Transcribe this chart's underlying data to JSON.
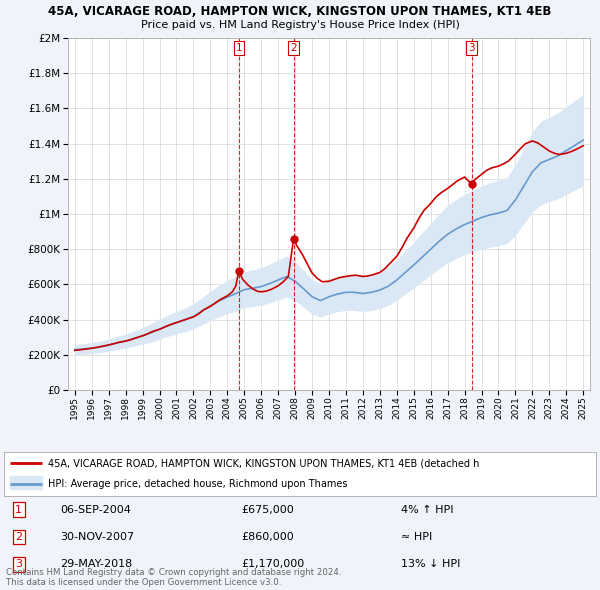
{
  "title1": "45A, VICARAGE ROAD, HAMPTON WICK, KINGSTON UPON THAMES, KT1 4EB",
  "title2": "Price paid vs. HM Land Registry's House Price Index (HPI)",
  "background_color": "#f0f4fa",
  "plot_bg_color": "#ffffff",
  "ytick_values": [
    0,
    200000,
    400000,
    600000,
    800000,
    1000000,
    1200000,
    1400000,
    1600000,
    1800000,
    2000000
  ],
  "xlim_start": 1994.6,
  "xlim_end": 2025.4,
  "ylim": [
    0,
    2000000
  ],
  "sale_dates": [
    2004.68,
    2007.91,
    2018.41
  ],
  "sale_prices": [
    675000,
    860000,
    1170000
  ],
  "sale_labels": [
    "1",
    "2",
    "3"
  ],
  "red_line_color": "#cc0000",
  "blue_line_color": "#6699cc",
  "blue_fill_color": "#dae8f5",
  "vline_color": "#cc0000",
  "legend_label_red": "45A, VICARAGE ROAD, HAMPTON WICK, KINGSTON UPON THAMES, KT1 4EB (detached h",
  "legend_label_blue": "HPI: Average price, detached house, Richmond upon Thames",
  "table_data": [
    {
      "num": "1",
      "date": "06-SEP-2004",
      "price": "£675,000",
      "relation": "4% ↑ HPI"
    },
    {
      "num": "2",
      "date": "30-NOV-2007",
      "price": "£860,000",
      "relation": "≈ HPI"
    },
    {
      "num": "3",
      "date": "29-MAY-2018",
      "price": "£1,170,000",
      "relation": "13% ↓ HPI"
    }
  ],
  "footer_text": "Contains HM Land Registry data © Crown copyright and database right 2024.\nThis data is licensed under the Open Government Licence v3.0.",
  "hpi_x": [
    1995.0,
    1995.5,
    1996.0,
    1996.5,
    1997.0,
    1997.5,
    1998.0,
    1998.5,
    1999.0,
    1999.5,
    2000.0,
    2000.5,
    2001.0,
    2001.5,
    2002.0,
    2002.5,
    2003.0,
    2003.5,
    2004.0,
    2004.5,
    2005.0,
    2005.5,
    2006.0,
    2006.5,
    2007.0,
    2007.5,
    2008.0,
    2008.5,
    2009.0,
    2009.5,
    2010.0,
    2010.5,
    2011.0,
    2011.5,
    2012.0,
    2012.5,
    2013.0,
    2013.5,
    2014.0,
    2014.5,
    2015.0,
    2015.5,
    2016.0,
    2016.5,
    2017.0,
    2017.5,
    2018.0,
    2018.5,
    2019.0,
    2019.5,
    2020.0,
    2020.5,
    2021.0,
    2021.5,
    2022.0,
    2022.5,
    2023.0,
    2023.5,
    2024.0,
    2024.5,
    2025.0
  ],
  "hpi_values": [
    230000,
    233000,
    238000,
    245000,
    255000,
    268000,
    278000,
    292000,
    308000,
    325000,
    345000,
    365000,
    383000,
    398000,
    418000,
    448000,
    478000,
    505000,
    528000,
    548000,
    570000,
    578000,
    588000,
    605000,
    625000,
    645000,
    618000,
    575000,
    530000,
    508000,
    530000,
    545000,
    555000,
    555000,
    548000,
    555000,
    568000,
    590000,
    625000,
    668000,
    710000,
    755000,
    800000,
    845000,
    885000,
    915000,
    940000,
    960000,
    980000,
    995000,
    1005000,
    1020000,
    1080000,
    1160000,
    1240000,
    1290000,
    1310000,
    1330000,
    1360000,
    1390000,
    1420000
  ],
  "hpi_upper": [
    260000,
    263000,
    270000,
    278000,
    290000,
    305000,
    318000,
    335000,
    355000,
    378000,
    402000,
    425000,
    447000,
    465000,
    490000,
    525000,
    562000,
    595000,
    622000,
    648000,
    672000,
    682000,
    695000,
    715000,
    738000,
    762000,
    730000,
    680000,
    628000,
    602000,
    628000,
    645000,
    658000,
    658000,
    650000,
    658000,
    673000,
    698000,
    740000,
    790000,
    840000,
    894000,
    948000,
    1000000,
    1048000,
    1083000,
    1112000,
    1136000,
    1160000,
    1178000,
    1190000,
    1208000,
    1280000,
    1374000,
    1468000,
    1528000,
    1550000,
    1574000,
    1610000,
    1644000,
    1680000
  ],
  "hpi_lower": [
    200000,
    203000,
    206000,
    212000,
    220000,
    231000,
    238000,
    249000,
    261000,
    272000,
    288000,
    305000,
    319000,
    331000,
    346000,
    371000,
    394000,
    415000,
    434000,
    448000,
    468000,
    474000,
    481000,
    495000,
    512000,
    528000,
    506000,
    470000,
    432000,
    414000,
    432000,
    445000,
    452000,
    452000,
    446000,
    452000,
    463000,
    482000,
    510000,
    546000,
    580000,
    616000,
    652000,
    690000,
    722000,
    747000,
    768000,
    784000,
    800000,
    812000,
    820000,
    832000,
    880000,
    946000,
    1012000,
    1052000,
    1070000,
    1086000,
    1110000,
    1136000,
    1160000
  ],
  "price_x": [
    1995.0,
    1995.3,
    1995.6,
    1996.0,
    1996.3,
    1996.6,
    1997.0,
    1997.3,
    1997.6,
    1998.0,
    1998.3,
    1998.6,
    1999.0,
    1999.3,
    1999.6,
    2000.0,
    2000.3,
    2000.6,
    2001.0,
    2001.3,
    2001.6,
    2002.0,
    2002.3,
    2002.6,
    2003.0,
    2003.3,
    2003.6,
    2004.0,
    2004.3,
    2004.5,
    2004.68,
    2004.9,
    2005.2,
    2005.5,
    2005.8,
    2006.0,
    2006.3,
    2006.6,
    2007.0,
    2007.3,
    2007.6,
    2007.91,
    2008.1,
    2008.4,
    2008.7,
    2009.0,
    2009.3,
    2009.6,
    2010.0,
    2010.3,
    2010.6,
    2011.0,
    2011.3,
    2011.6,
    2012.0,
    2012.3,
    2012.6,
    2013.0,
    2013.3,
    2013.6,
    2014.0,
    2014.3,
    2014.6,
    2015.0,
    2015.3,
    2015.6,
    2016.0,
    2016.3,
    2016.6,
    2017.0,
    2017.3,
    2017.6,
    2018.0,
    2018.41,
    2018.6,
    2019.0,
    2019.3,
    2019.6,
    2020.0,
    2020.3,
    2020.6,
    2021.0,
    2021.3,
    2021.6,
    2022.0,
    2022.3,
    2022.6,
    2023.0,
    2023.3,
    2023.6,
    2024.0,
    2024.3,
    2024.6,
    2025.0
  ],
  "price_values": [
    225000,
    228000,
    232000,
    237000,
    242000,
    248000,
    256000,
    263000,
    271000,
    278000,
    286000,
    296000,
    308000,
    320000,
    333000,
    345000,
    358000,
    370000,
    383000,
    393000,
    403000,
    415000,
    432000,
    455000,
    475000,
    495000,
    515000,
    535000,
    558000,
    590000,
    675000,
    630000,
    598000,
    575000,
    560000,
    558000,
    562000,
    572000,
    592000,
    615000,
    645000,
    860000,
    820000,
    775000,
    720000,
    665000,
    635000,
    615000,
    618000,
    628000,
    638000,
    645000,
    650000,
    652000,
    645000,
    648000,
    655000,
    668000,
    690000,
    720000,
    760000,
    808000,
    862000,
    920000,
    975000,
    1020000,
    1060000,
    1095000,
    1120000,
    1145000,
    1168000,
    1190000,
    1210000,
    1170000,
    1195000,
    1225000,
    1248000,
    1262000,
    1272000,
    1285000,
    1302000,
    1340000,
    1372000,
    1400000,
    1415000,
    1405000,
    1385000,
    1358000,
    1345000,
    1338000,
    1345000,
    1355000,
    1368000,
    1388000
  ]
}
